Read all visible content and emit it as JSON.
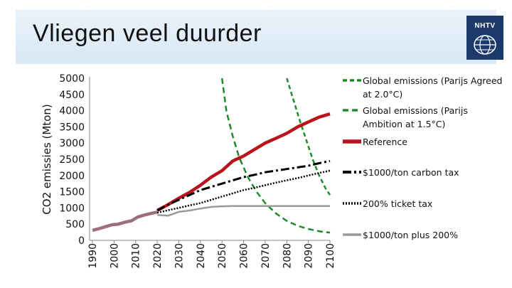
{
  "page": {
    "title": "Vliegen veel duurder",
    "logo_text": "NHTV"
  },
  "chart_data": {
    "type": "line",
    "title": "",
    "xlabel": "",
    "ylabel": "CO2 emissies (Mton)",
    "xlim": [
      1990,
      2100
    ],
    "ylim": [
      0,
      5000
    ],
    "x_ticks": [
      "1990",
      "2000",
      "2010",
      "2020",
      "2030",
      "2040",
      "2050",
      "2060",
      "2070",
      "2080",
      "2090",
      "2100"
    ],
    "y_ticks": [
      "5000",
      "4500",
      "4000",
      "3500",
      "3000",
      "2500",
      "2000",
      "1500",
      "1000",
      "500",
      "0"
    ],
    "grid": false,
    "legend_position": "right",
    "series": [
      {
        "name": "Global emissions (Parijs Agreed at 2.0°C)",
        "color": "#1e8a2a",
        "style": "dashed-short",
        "x": [
          2080,
          2083,
          2086,
          2089,
          2092,
          2095,
          2098,
          2100
        ],
        "y": [
          5000,
          4350,
          3700,
          3100,
          2500,
          2000,
          1600,
          1400
        ]
      },
      {
        "name": "Global emissions (Parijs Ambition at 1.5°C)",
        "color": "#1e8a2a",
        "style": "dashed",
        "x": [
          2050,
          2052,
          2055,
          2058,
          2062,
          2066,
          2070,
          2075,
          2080,
          2085,
          2090,
          2095,
          2100
        ],
        "y": [
          5000,
          4000,
          3200,
          2550,
          1950,
          1500,
          1150,
          830,
          600,
          450,
          350,
          280,
          240
        ]
      },
      {
        "name": "Reference",
        "color": "#b9141b",
        "style": "solid-thick",
        "x": [
          2020,
          2025,
          2030,
          2035,
          2040,
          2045,
          2050,
          2055,
          2060,
          2065,
          2070,
          2075,
          2080,
          2085,
          2090,
          2095,
          2100
        ],
        "y": [
          920,
          1100,
          1300,
          1480,
          1700,
          1950,
          2150,
          2450,
          2600,
          2800,
          3000,
          3150,
          3300,
          3500,
          3650,
          3800,
          3900
        ]
      },
      {
        "name": "$1000/ton carbon tax",
        "color": "#000000",
        "style": "dash-dot",
        "x": [
          2020,
          2025,
          2030,
          2035,
          2040,
          2045,
          2050,
          2055,
          2060,
          2065,
          2070,
          2075,
          2080,
          2085,
          2090,
          2095,
          2100
        ],
        "y": [
          920,
          1100,
          1250,
          1400,
          1550,
          1650,
          1750,
          1850,
          1950,
          2020,
          2100,
          2150,
          2200,
          2250,
          2300,
          2380,
          2450
        ]
      },
      {
        "name": "200% ticket tax",
        "color": "#000000",
        "style": "dotted",
        "x": [
          2020,
          2025,
          2030,
          2035,
          2040,
          2045,
          2050,
          2055,
          2060,
          2065,
          2070,
          2075,
          2080,
          2085,
          2090,
          2095,
          2100
        ],
        "y": [
          850,
          930,
          1000,
          1080,
          1150,
          1250,
          1350,
          1450,
          1550,
          1620,
          1700,
          1780,
          1850,
          1920,
          2000,
          2080,
          2150
        ]
      },
      {
        "name": "$1000/ton plus 200%",
        "color": "#9a9a9a",
        "style": "solid",
        "x": [
          2020,
          2025,
          2030,
          2035,
          2040,
          2045,
          2050,
          2055,
          2060,
          2065,
          2070,
          2075,
          2080,
          2085,
          2090,
          2095,
          2100
        ],
        "y": [
          780,
          760,
          880,
          920,
          980,
          1030,
          1050,
          1060,
          1060,
          1060,
          1060,
          1060,
          1060,
          1060,
          1060,
          1060,
          1060
        ]
      },
      {
        "name": "",
        "color": "#9e6f7a",
        "style": "solid-thick",
        "x": [
          1990,
          1993,
          1996,
          1999,
          2002,
          2005,
          2008,
          2011,
          2014,
          2017,
          2020
        ],
        "y": [
          310,
          360,
          420,
          480,
          500,
          560,
          600,
          720,
          780,
          830,
          870
        ]
      }
    ]
  },
  "legend": [
    "Global emissions (Parijs Agreed at 2.0°C)",
    "Global emissions (Parijs Ambition at 1.5°C)",
    "Reference",
    "$1000/ton carbon tax",
    "200% ticket tax",
    "$1000/ton plus 200%"
  ]
}
